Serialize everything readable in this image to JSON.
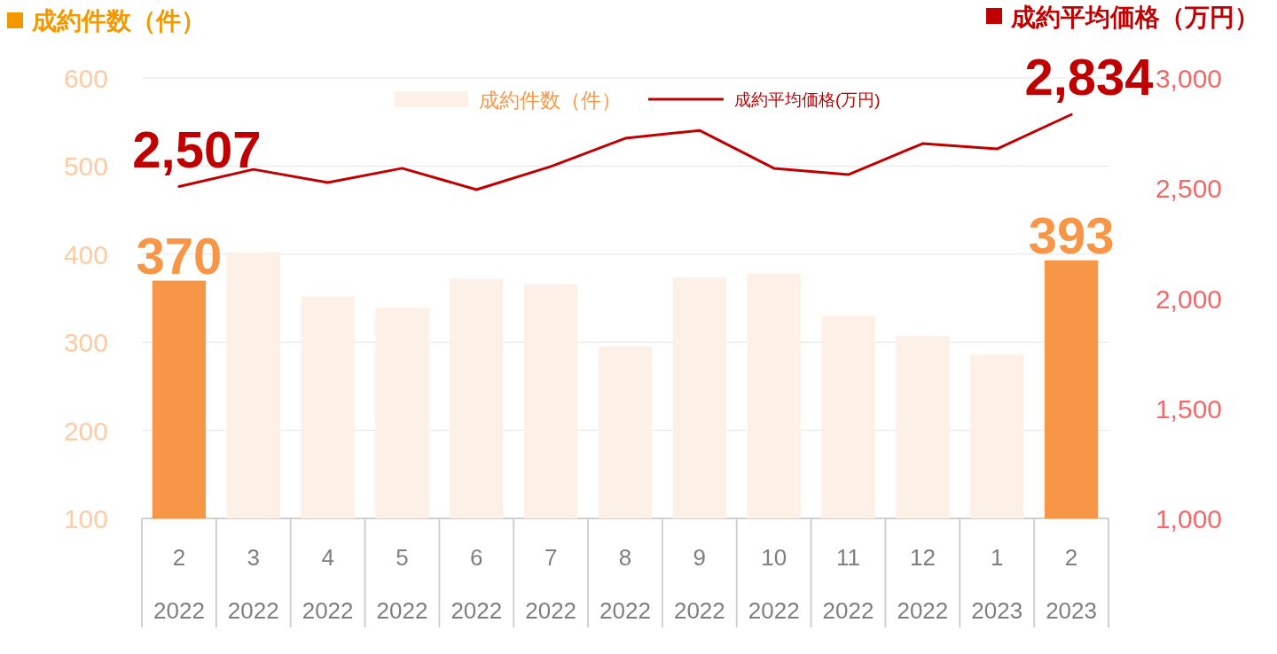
{
  "chart_data": {
    "type": "bar",
    "ylabel": "成約件数（件）",
    "y2label": "成約平均価格（万円）",
    "categories": [
      "2\n2022",
      "3\n2022",
      "4\n2022",
      "5\n2022",
      "6\n2022",
      "7\n2022",
      "8\n2022",
      "9\n2022",
      "10\n2022",
      "11\n2022",
      "12\n2022",
      "1\n2023",
      "2\n2023"
    ],
    "series": [
      {
        "name": "成約件数（件）",
        "colors": [
          "#f79646",
          "#fdf0e6",
          "#fdf0e6",
          "#fdf0e6",
          "#fdf0e6",
          "#fdf0e6",
          "#fdf0e6",
          "#fdf0e6",
          "#fdf0e6",
          "#fdf0e6",
          "#fdf0e6",
          "#fdf0e6",
          "#f79646"
        ],
        "values": [
          370,
          402,
          352,
          339,
          372,
          366,
          295,
          374,
          378,
          330,
          307,
          286,
          393
        ],
        "value_labels": [
          "370",
          null,
          null,
          null,
          null,
          null,
          null,
          null,
          null,
          null,
          null,
          null,
          "393"
        ]
      },
      {
        "name": "成約平均価格(万円)",
        "type": "line",
        "axis": "y2",
        "color": "#c00000",
        "values": [
          2507,
          2585,
          2525,
          2590,
          2493,
          2598,
          2726,
          2762,
          2590,
          2561,
          2702,
          2678,
          2834
        ],
        "value_labels": [
          "2,507",
          null,
          null,
          null,
          null,
          null,
          null,
          null,
          null,
          null,
          null,
          null,
          "2,834"
        ]
      }
    ],
    "ylim": [
      100,
      600
    ],
    "yticks": [
      100,
      200,
      300,
      400,
      500,
      600
    ],
    "y2lim": [
      1000,
      3000
    ],
    "y2ticks": [
      {
        "value": 1000,
        "label": "1,000"
      },
      {
        "value": 1500,
        "label": "1,500"
      },
      {
        "value": 2000,
        "label": "2,000"
      },
      {
        "value": 2500,
        "label": "2,500"
      },
      {
        "value": 3000,
        "label": "3,000"
      }
    ],
    "grid": "y",
    "legend": "top"
  }
}
